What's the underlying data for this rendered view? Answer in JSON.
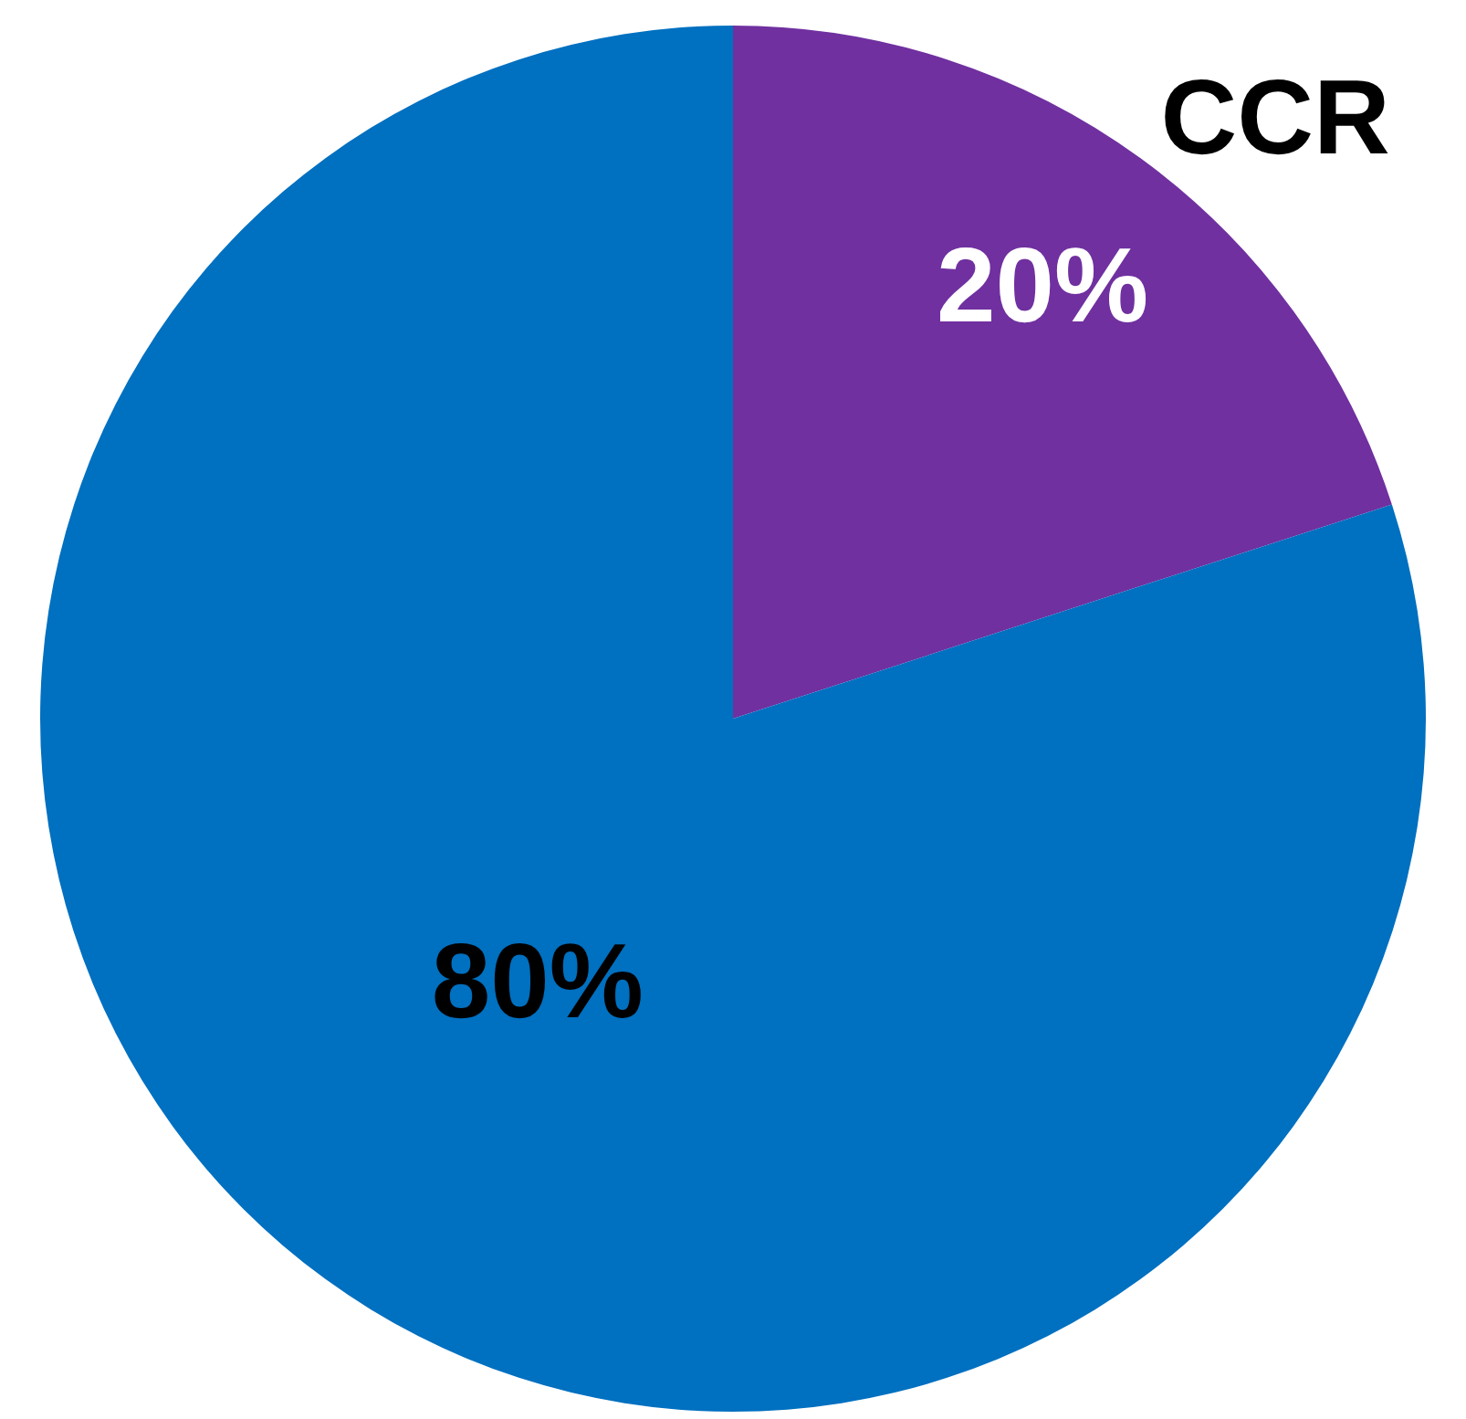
{
  "chart_data": {
    "type": "pie",
    "categories": [
      "CCR",
      null
    ],
    "values": [
      20,
      80
    ],
    "colors": [
      "#7030a0",
      "#0070c0"
    ],
    "value_labels": [
      "20%",
      "80%"
    ]
  }
}
